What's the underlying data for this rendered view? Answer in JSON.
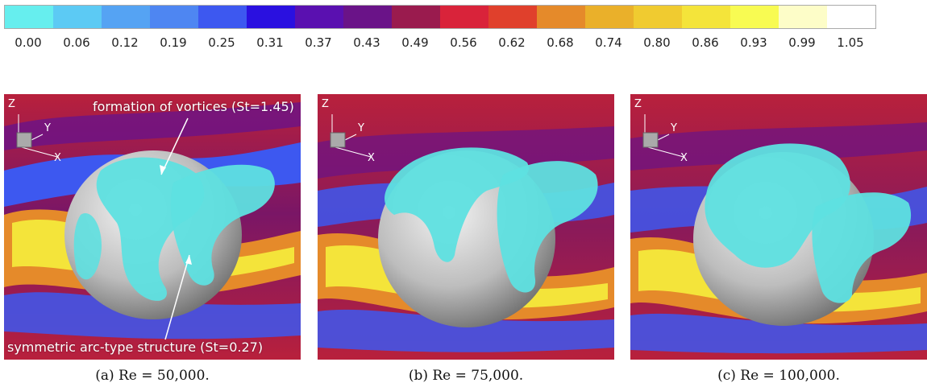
{
  "colorbar": {
    "colors": [
      "#66eeee",
      "#5ccaf4",
      "#55a3f3",
      "#4e86f2",
      "#3d58f0",
      "#2a10e0",
      "#5a10b0",
      "#6a1388",
      "#9a1b4e",
      "#d9233a",
      "#e0402c",
      "#e58a2a",
      "#eab02a",
      "#f0cb30",
      "#f4e43a",
      "#f8fb52",
      "#fdfdc8",
      "#ffffff"
    ],
    "ticks": [
      "0.00",
      "0.06",
      "0.12",
      "0.19",
      "0.25",
      "0.31",
      "0.37",
      "0.43",
      "0.49",
      "0.56",
      "0.62",
      "0.68",
      "0.74",
      "0.80",
      "0.86",
      "0.93",
      "0.99",
      "1.05"
    ]
  },
  "panels": [
    {
      "caption": "(a) Re = 50,000.",
      "axes": {
        "z": "Z",
        "y": "Y",
        "x": "X"
      },
      "annotations": {
        "top": "formation of vortices (St=1.45)",
        "bottom": "symmetric arc-type structure (St=0.27)"
      }
    },
    {
      "caption": "(b) Re = 75,000.",
      "axes": {
        "z": "Z",
        "y": "Y",
        "x": "X"
      }
    },
    {
      "caption": "(c) Re = 100,000.",
      "axes": {
        "z": "Z",
        "y": "Y",
        "x": "X"
      }
    }
  ],
  "colors": {
    "background_red": "#b8203c",
    "purple": "#6a1388",
    "blue": "#3d58f0",
    "yellow": "#f4e43a",
    "orange": "#e58a2a",
    "sphere": "#c8c8c8",
    "vortex": "#5ee0e0"
  }
}
